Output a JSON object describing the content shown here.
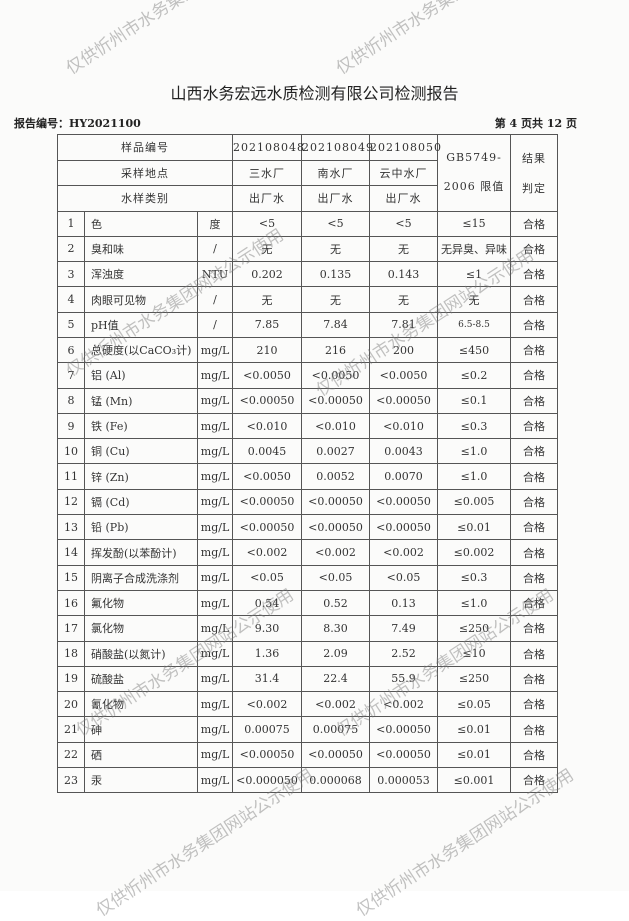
{
  "title": "山西水务宏远水质检测有限公司检测报告",
  "report_no": "报告编号：HY2021100",
  "page_info": "第 4 页共 12 页",
  "watermark": "仅供忻州市水务集团网站公示使用",
  "header": {
    "sample_no_label": "样品编号",
    "site_label": "采样地点",
    "type_label": "水样类别",
    "samples": [
      {
        "no": "202108048",
        "site": "三水厂",
        "type": "出厂水"
      },
      {
        "no": "202108049",
        "site": "南水厂",
        "type": "出厂水"
      },
      {
        "no": "202108050",
        "site": "云中水厂",
        "type": "出厂水"
      }
    ],
    "limit_label_1": "GB5749-",
    "limit_label_2": "2006 限值",
    "result_label_1": "结果",
    "result_label_2": "判定"
  },
  "rows": [
    [
      "1",
      "色",
      "度",
      "<5",
      "<5",
      "<5",
      "≤15",
      "合格"
    ],
    [
      "2",
      "臭和味",
      "/",
      "无",
      "无",
      "无",
      "无异臭、异味",
      "合格"
    ],
    [
      "3",
      "浑浊度",
      "NTU",
      "0.202",
      "0.135",
      "0.143",
      "≤1",
      "合格"
    ],
    [
      "4",
      "肉眼可见物",
      "/",
      "无",
      "无",
      "无",
      "无",
      "合格"
    ],
    [
      "5",
      "pH值",
      "/",
      "7.85",
      "7.84",
      "7.81",
      "6.5-8.5",
      "合格"
    ],
    [
      "6",
      "总硬度(以CaCO₃计)",
      "mg/L",
      "210",
      "216",
      "200",
      "≤450",
      "合格"
    ],
    [
      "7",
      "铝 (Al)",
      "mg/L",
      "<0.0050",
      "<0.0050",
      "<0.0050",
      "≤0.2",
      "合格"
    ],
    [
      "8",
      "锰 (Mn)",
      "mg/L",
      "<0.00050",
      "<0.00050",
      "<0.00050",
      "≤0.1",
      "合格"
    ],
    [
      "9",
      "铁 (Fe)",
      "mg/L",
      "<0.010",
      "<0.010",
      "<0.010",
      "≤0.3",
      "合格"
    ],
    [
      "10",
      "铜 (Cu)",
      "mg/L",
      "0.0045",
      "0.0027",
      "0.0043",
      "≤1.0",
      "合格"
    ],
    [
      "11",
      "锌 (Zn)",
      "mg/L",
      "<0.0050",
      "0.0052",
      "0.0070",
      "≤1.0",
      "合格"
    ],
    [
      "12",
      "镉 (Cd)",
      "mg/L",
      "<0.00050",
      "<0.00050",
      "<0.00050",
      "≤0.005",
      "合格"
    ],
    [
      "13",
      "铅 (Pb)",
      "mg/L",
      "<0.00050",
      "<0.00050",
      "<0.00050",
      "≤0.01",
      "合格"
    ],
    [
      "14",
      "挥发酚(以苯酚计)",
      "mg/L",
      "<0.002",
      "<0.002",
      "<0.002",
      "≤0.002",
      "合格"
    ],
    [
      "15",
      "阴离子合成洗涤剂",
      "mg/L",
      "<0.05",
      "<0.05",
      "<0.05",
      "≤0.3",
      "合格"
    ],
    [
      "16",
      "氟化物",
      "mg/L",
      "0.54",
      "0.52",
      "0.13",
      "≤1.0",
      "合格"
    ],
    [
      "17",
      "氯化物",
      "mg/L",
      "9.30",
      "8.30",
      "7.49",
      "≤250",
      "合格"
    ],
    [
      "18",
      "硝酸盐(以氮计)",
      "mg/L",
      "1.36",
      "2.09",
      "2.52",
      "≤10",
      "合格"
    ],
    [
      "19",
      "硫酸盐",
      "mg/L",
      "31.4",
      "22.4",
      "55.9",
      "≤250",
      "合格"
    ],
    [
      "20",
      "氰化物",
      "mg/L",
      "<0.002",
      "<0.002",
      "<0.002",
      "≤0.05",
      "合格"
    ],
    [
      "21",
      "砷",
      "mg/L",
      "0.00075",
      "0.00075",
      "<0.00050",
      "≤0.01",
      "合格"
    ],
    [
      "22",
      "硒",
      "mg/L",
      "<0.00050",
      "<0.00050",
      "<0.00050",
      "≤0.01",
      "合格"
    ],
    [
      "23",
      "汞",
      "mg/L",
      "<0.000050",
      "0.000068",
      "0.000053",
      "≤0.001",
      "合格"
    ]
  ]
}
